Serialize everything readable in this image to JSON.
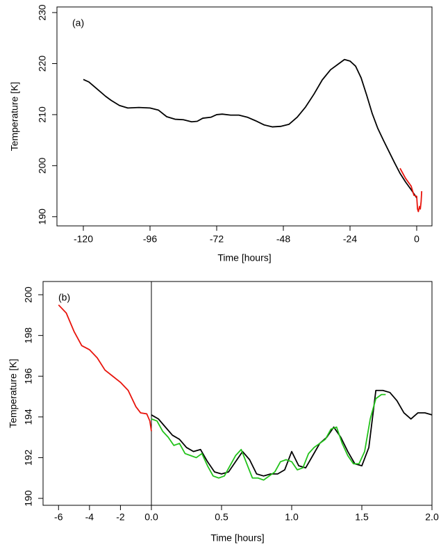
{
  "chart_data": [
    {
      "type": "line",
      "label": "(a)",
      "xlabel": "Time [hours]",
      "ylabel": "Temperature [K]",
      "xlim": [
        -129.5,
        5.5
      ],
      "xticks": [
        -120,
        -96,
        -72,
        -48,
        -24,
        0
      ],
      "ylim": [
        188.2,
        231.1
      ],
      "yticks": [
        190,
        200,
        210,
        220,
        230
      ],
      "series": [
        {
          "color": "#000000",
          "x": [
            -120,
            -118,
            -115,
            -112,
            -110,
            -107,
            -104,
            -100,
            -96,
            -93,
            -90,
            -87,
            -84,
            -81,
            -79,
            -77,
            -74,
            -72,
            -70,
            -67,
            -64,
            -61,
            -58,
            -55,
            -52,
            -49,
            -46,
            -43,
            -40,
            -37,
            -34,
            -31,
            -28,
            -26,
            -24,
            -22,
            -20,
            -18,
            -16,
            -14,
            -12,
            -10,
            -8,
            -6,
            -4,
            -2,
            0
          ],
          "values": [
            216.9,
            216.4,
            215,
            213.6,
            212.8,
            211.8,
            211.3,
            211.4,
            211.3,
            210.9,
            209.6,
            209.1,
            209.0,
            208.6,
            208.7,
            209.3,
            209.5,
            210.0,
            210.1,
            209.9,
            209.9,
            209.5,
            208.8,
            208.0,
            207.6,
            207.7,
            208.1,
            209.5,
            211.5,
            214.0,
            216.8,
            218.8,
            220.0,
            220.8,
            220.5,
            219.5,
            217.2,
            213.8,
            210.2,
            207.3,
            205.0,
            202.8,
            200.6,
            198.5,
            196.8,
            195.3,
            193.7
          ]
        },
        {
          "color": "#e8140c",
          "x": [
            -6,
            -4,
            -2,
            -1,
            0,
            0.3,
            0.6,
            1.0,
            1.3,
            1.6,
            1.8
          ],
          "values": [
            199.5,
            197.5,
            196,
            194.2,
            194,
            191.5,
            191,
            192,
            191.5,
            193,
            195
          ]
        }
      ]
    },
    {
      "type": "line",
      "label": "(b)",
      "xlabel": "Time [hours]",
      "ylabel": "Temperature [K]",
      "xlims": [
        [
          -7,
          0
        ],
        [
          0,
          2
        ]
      ],
      "xticks": [
        -6,
        -4,
        -2,
        {
          "value": 0,
          "label": "0.0"
        },
        0.5,
        {
          "value": 1,
          "label": "1.0"
        },
        1.5,
        {
          "value": 2,
          "label": "2.0"
        }
      ],
      "ylim": [
        189.66,
        200.65
      ],
      "yticks": [
        190,
        192,
        194,
        196,
        198,
        200
      ],
      "series": [
        {
          "color": "#e8140c",
          "x": [
            -6,
            -5.5,
            -5,
            -4.5,
            -4,
            -3.5,
            -3,
            -2.5,
            -2,
            -1.5,
            -1,
            -0.7,
            -0.3,
            -0.1,
            0
          ],
          "values": [
            199.5,
            199.1,
            198.2,
            197.5,
            197.3,
            196.9,
            196.3,
            196.0,
            195.7,
            195.3,
            194.5,
            194.2,
            194.15,
            193.8,
            193.3
          ]
        },
        {
          "color": "#000000",
          "x": [
            0,
            0.05,
            0.1,
            0.15,
            0.2,
            0.25,
            0.3,
            0.35,
            0.4,
            0.45,
            0.5,
            0.55,
            0.6,
            0.65,
            0.7,
            0.75,
            0.8,
            0.85,
            0.9,
            0.95,
            1.0,
            1.05,
            1.1,
            1.15,
            1.2,
            1.25,
            1.3,
            1.35,
            1.4,
            1.45,
            1.5,
            1.55,
            1.6,
            1.65,
            1.7,
            1.75,
            1.8,
            1.85,
            1.9,
            1.95,
            2.0
          ],
          "values": [
            194.1,
            193.9,
            193.5,
            193.1,
            192.9,
            192.5,
            192.3,
            192.4,
            191.8,
            191.3,
            191.2,
            191.3,
            191.8,
            192.3,
            191.9,
            191.2,
            191.1,
            191.2,
            191.2,
            191.4,
            192.3,
            191.6,
            191.5,
            192.1,
            192.7,
            193.0,
            193.5,
            193.0,
            192.3,
            191.7,
            191.6,
            192.5,
            195.3,
            195.3,
            195.2,
            194.8,
            194.2,
            193.9,
            194.2,
            194.2,
            194.1
          ]
        },
        {
          "color": "#22c21a",
          "x": [
            0,
            0.04,
            0.08,
            0.12,
            0.16,
            0.2,
            0.24,
            0.28,
            0.32,
            0.36,
            0.4,
            0.44,
            0.48,
            0.52,
            0.56,
            0.6,
            0.64,
            0.68,
            0.72,
            0.76,
            0.8,
            0.84,
            0.88,
            0.92,
            0.96,
            1.0,
            1.04,
            1.08,
            1.12,
            1.16,
            1.2,
            1.24,
            1.28,
            1.32,
            1.36,
            1.4,
            1.44,
            1.48,
            1.52,
            1.56,
            1.6,
            1.64,
            1.67
          ],
          "values": [
            193.9,
            193.8,
            193.3,
            193.0,
            192.6,
            192.7,
            192.2,
            192.1,
            192.0,
            192.2,
            191.6,
            191.1,
            191.0,
            191.1,
            191.6,
            192.1,
            192.4,
            191.7,
            191.0,
            191.0,
            190.9,
            191.1,
            191.3,
            191.8,
            191.9,
            191.8,
            191.4,
            191.5,
            192.2,
            192.5,
            192.7,
            192.9,
            193.4,
            193.5,
            192.7,
            192.1,
            191.7,
            191.7,
            192.3,
            193.9,
            194.9,
            195.1,
            195.1
          ]
        }
      ]
    }
  ]
}
